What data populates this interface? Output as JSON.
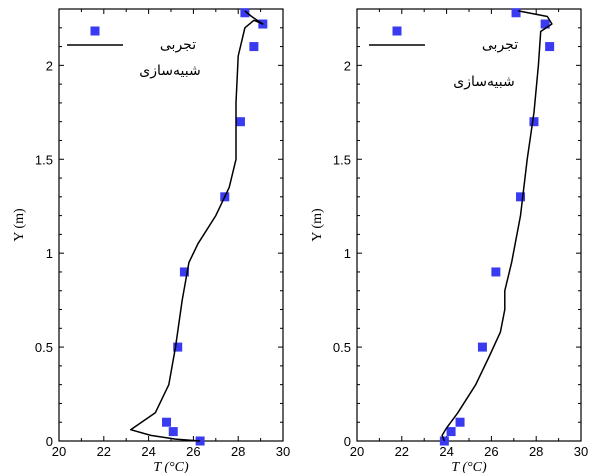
{
  "colors": {
    "marker": "#3a3af0",
    "line": "#000000",
    "frame": "#000000"
  },
  "chart_data": [
    {
      "type": "scatter",
      "xlabel": "T (°C)",
      "ylabel": "Y (m)",
      "xlim": [
        20,
        30
      ],
      "ylim": [
        0,
        2.3
      ],
      "xticks": [
        "20",
        "22",
        "24",
        "26",
        "28",
        "30"
      ],
      "yticks": [
        "0",
        "0.5",
        "1",
        "1.5",
        "2"
      ],
      "legend": {
        "placement": "top-left",
        "entries": [
          "تجربی",
          "شبیه‌سازی"
        ]
      },
      "series": [
        {
          "name": "تجربی",
          "kind": "markers",
          "points": [
            [
              28.3,
              2.28
            ],
            [
              29.1,
              2.22
            ],
            [
              28.7,
              2.1
            ],
            [
              28.1,
              1.7
            ],
            [
              27.4,
              1.3
            ],
            [
              25.6,
              0.9
            ],
            [
              25.3,
              0.5
            ],
            [
              24.8,
              0.1
            ],
            [
              25.1,
              0.05
            ],
            [
              26.3,
              0.0
            ]
          ]
        },
        {
          "name": "شبیه‌سازی",
          "kind": "line",
          "points": [
            [
              26.3,
              0.0
            ],
            [
              25.2,
              0.01
            ],
            [
              24.1,
              0.03
            ],
            [
              23.2,
              0.06
            ],
            [
              24.3,
              0.15
            ],
            [
              24.9,
              0.3
            ],
            [
              25.2,
              0.5
            ],
            [
              25.5,
              0.75
            ],
            [
              25.8,
              0.95
            ],
            [
              26.2,
              1.05
            ],
            [
              27.0,
              1.2
            ],
            [
              27.6,
              1.35
            ],
            [
              27.9,
              1.5
            ],
            [
              27.9,
              1.8
            ],
            [
              28.0,
              2.05
            ],
            [
              28.3,
              2.2
            ],
            [
              28.7,
              2.24
            ],
            [
              29.1,
              2.22
            ],
            [
              28.6,
              2.26
            ],
            [
              28.3,
              2.29
            ]
          ]
        }
      ]
    },
    {
      "type": "scatter",
      "xlabel": "T (°C)",
      "ylabel": "Y (m)",
      "xlim": [
        20,
        30
      ],
      "ylim": [
        0,
        2.3
      ],
      "xticks": [
        "20",
        "22",
        "24",
        "26",
        "28",
        "30"
      ],
      "yticks": [
        "0",
        "0.5",
        "1",
        "1.5",
        "2"
      ],
      "legend": {
        "placement": "top-left",
        "entries": [
          "تجربی",
          "شبیه‌سازی"
        ]
      },
      "series": [
        {
          "name": "تجربی",
          "kind": "markers",
          "points": [
            [
              27.1,
              2.28
            ],
            [
              28.4,
              2.22
            ],
            [
              28.6,
              2.1
            ],
            [
              27.9,
              1.7
            ],
            [
              27.3,
              1.3
            ],
            [
              26.2,
              0.9
            ],
            [
              25.6,
              0.5
            ],
            [
              24.6,
              0.1
            ],
            [
              24.2,
              0.05
            ],
            [
              23.9,
              0.0
            ]
          ]
        },
        {
          "name": "شبیه‌سازی",
          "kind": "line",
          "points": [
            [
              23.9,
              0.0
            ],
            [
              23.8,
              0.03
            ],
            [
              24.0,
              0.07
            ],
            [
              24.5,
              0.15
            ],
            [
              25.3,
              0.3
            ],
            [
              25.9,
              0.45
            ],
            [
              26.4,
              0.58
            ],
            [
              26.6,
              0.7
            ],
            [
              26.6,
              0.8
            ],
            [
              26.9,
              0.95
            ],
            [
              27.3,
              1.2
            ],
            [
              27.6,
              1.5
            ],
            [
              27.9,
              1.75
            ],
            [
              28.1,
              2.0
            ],
            [
              28.2,
              2.18
            ],
            [
              28.7,
              2.22
            ],
            [
              28.5,
              2.26
            ],
            [
              27.2,
              2.29
            ]
          ]
        }
      ]
    }
  ]
}
